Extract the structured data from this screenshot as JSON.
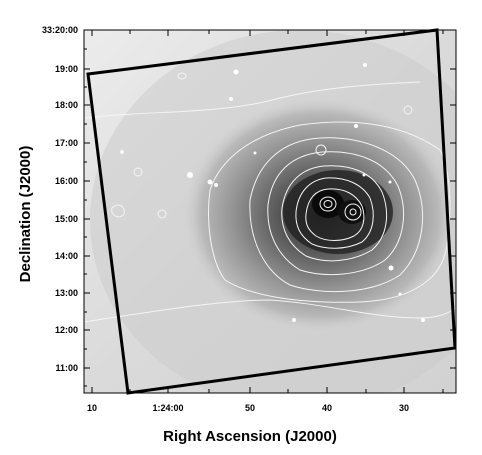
{
  "figure": {
    "type": "astronomical-image",
    "description_scale": "greyscale",
    "x_axis": {
      "title": "Right Ascension (J2000)",
      "tick_labels": [
        "10",
        "1:24:00",
        "50",
        "40",
        "30"
      ]
    },
    "y_axis": {
      "title": "Declination (J2000)",
      "tick_labels": [
        "33:20:00",
        "19:00",
        "18:00",
        "17:00",
        "16:00",
        "15:00",
        "14:00",
        "13:00",
        "12:00",
        "11:00"
      ]
    },
    "colors": {
      "frame": "#000000",
      "contour": "#f4f4f4",
      "background_light": "#e6e6e6",
      "background_dark": "#1a1a1a",
      "field_border": "#000000"
    }
  }
}
